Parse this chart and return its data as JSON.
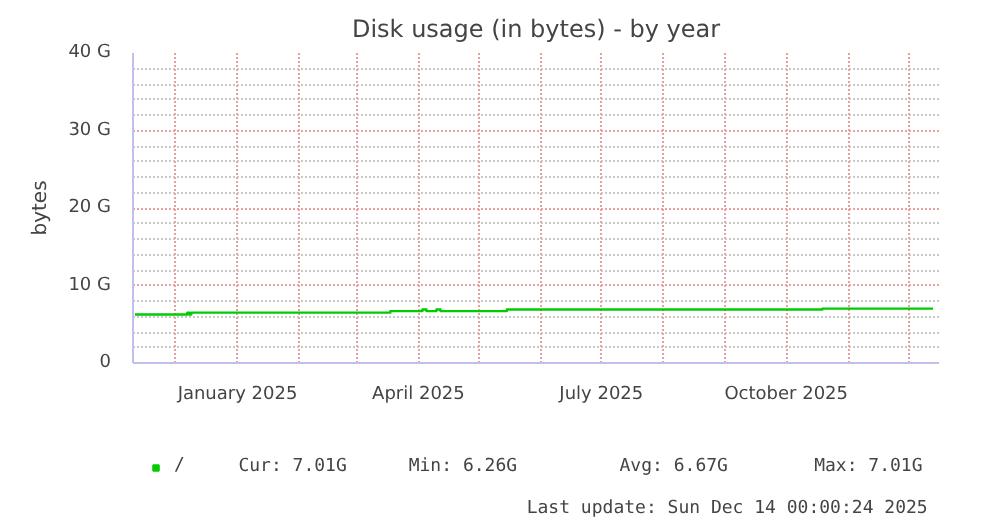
{
  "chart_data": {
    "type": "step",
    "title": "Disk usage (in bytes) - by year",
    "ylabel": "bytes",
    "x": [
      "2024-11-11",
      "2024-12-07",
      "2024-12-08",
      "2024-12-09",
      "2025-03-18",
      "2025-04-03",
      "2025-04-05",
      "2025-04-10",
      "2025-04-12",
      "2025-05-15",
      "2025-10-19",
      "2025-12-13"
    ],
    "series": [
      {
        "name": "/",
        "color": "#00cc00",
        "values": [
          6.26,
          6.5,
          6.26,
          6.5,
          6.7,
          6.9,
          6.7,
          6.9,
          6.7,
          6.9,
          7.01,
          7.01
        ]
      }
    ],
    "xlim": [
      "2024-11-10",
      "2025-12-16"
    ],
    "xticks": [
      {
        "value": "2024-12-01",
        "label": null
      },
      {
        "value": "2025-01-01",
        "label": "January 2025"
      },
      {
        "value": "2025-02-01",
        "label": null
      },
      {
        "value": "2025-03-01",
        "label": null
      },
      {
        "value": "2025-04-01",
        "label": "April 2025"
      },
      {
        "value": "2025-05-01",
        "label": null
      },
      {
        "value": "2025-06-01",
        "label": null
      },
      {
        "value": "2025-07-01",
        "label": "July 2025"
      },
      {
        "value": "2025-08-01",
        "label": null
      },
      {
        "value": "2025-09-01",
        "label": null
      },
      {
        "value": "2025-10-01",
        "label": "October 2025"
      },
      {
        "value": "2025-11-01",
        "label": null
      },
      {
        "value": "2025-12-01",
        "label": null
      }
    ],
    "ylim": [
      0,
      40
    ],
    "yticks": [
      0,
      {
        "value": 10,
        "label": "10 G"
      },
      {
        "value": 20,
        "label": "20 G"
      },
      {
        "value": 30,
        "label": "30 G"
      },
      {
        "value": 40,
        "label": "40 G"
      }
    ],
    "grid": true,
    "legend": "bottom left",
    "line_style": "solid",
    "marker": "none",
    "annotations": [
      "Cur: 7.01G",
      "Min: 6.26G",
      "Avg: 6.67G",
      "Max: 7.01G",
      "Last update: Sun Dec 14 00:00:24 2025"
    ]
  }
}
